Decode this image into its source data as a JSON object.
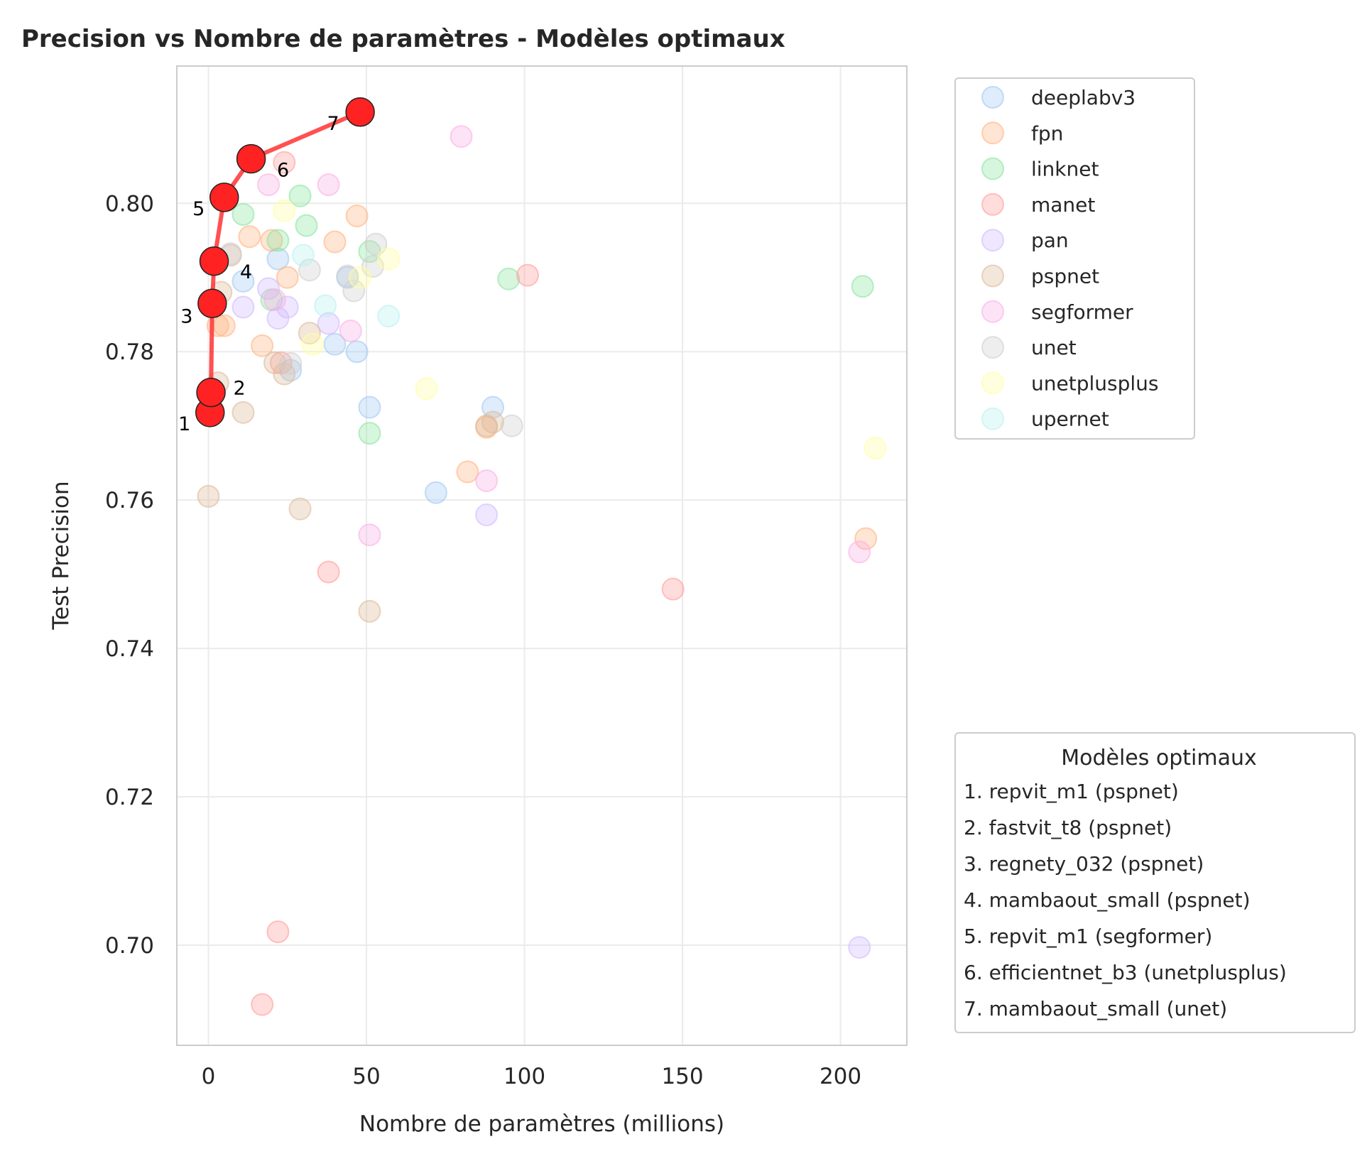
{
  "chart_data": {
    "type": "scatter",
    "title": "Precision vs Nombre de paramètres - Modèles optimaux",
    "xlabel": "Nombre de paramètres (millions)",
    "ylabel": "Test Precision",
    "xlim": [
      -10,
      221
    ],
    "ylim": [
      0.6865,
      0.8185
    ],
    "xticks": [
      0,
      50,
      100,
      150,
      200
    ],
    "yticks": [
      0.7,
      0.72,
      0.74,
      0.76,
      0.78,
      0.8
    ],
    "xtick_labels": [
      "0",
      "50",
      "100",
      "150",
      "200"
    ],
    "ytick_labels": [
      "0.70",
      "0.72",
      "0.74",
      "0.76",
      "0.78",
      "0.80"
    ],
    "grid": true,
    "legend_placement": "upper-right-outside",
    "series": [
      {
        "name": "deeplabv3",
        "color": "#a1c9f4",
        "points": [
          [
            11,
            0.7895
          ],
          [
            22,
            0.7925
          ],
          [
            26,
            0.7775
          ],
          [
            40,
            0.781
          ],
          [
            44,
            0.79
          ],
          [
            47,
            0.78
          ],
          [
            51,
            0.7725
          ],
          [
            72,
            0.761
          ],
          [
            90,
            0.7725
          ]
        ]
      },
      {
        "name": "fpn",
        "color": "#ffb482",
        "points": [
          [
            3,
            0.7835
          ],
          [
            5,
            0.7835
          ],
          [
            13,
            0.7955
          ],
          [
            17,
            0.7808
          ],
          [
            20,
            0.795
          ],
          [
            25,
            0.79
          ],
          [
            40,
            0.7948
          ],
          [
            47,
            0.7983
          ],
          [
            82,
            0.7638
          ],
          [
            88,
            0.7698
          ],
          [
            208,
            0.7548
          ]
        ]
      },
      {
        "name": "linknet",
        "color": "#8de5a1",
        "points": [
          [
            11,
            0.7985
          ],
          [
            20,
            0.787
          ],
          [
            22,
            0.795
          ],
          [
            29,
            0.801
          ],
          [
            31,
            0.797
          ],
          [
            51,
            0.769
          ],
          [
            51,
            0.7935
          ],
          [
            95,
            0.7898
          ],
          [
            207,
            0.7888
          ]
        ]
      },
      {
        "name": "manet",
        "color": "#ff9f9b",
        "points": [
          [
            17,
            0.692
          ],
          [
            22,
            0.7018
          ],
          [
            23,
            0.7785
          ],
          [
            24,
            0.8055
          ],
          [
            38,
            0.7503
          ],
          [
            101,
            0.7903
          ],
          [
            147,
            0.748
          ]
        ]
      },
      {
        "name": "pan",
        "color": "#d0bbff",
        "points": [
          [
            11,
            0.786
          ],
          [
            19,
            0.7885
          ],
          [
            22,
            0.7845
          ],
          [
            25,
            0.786
          ],
          [
            38,
            0.7838
          ],
          [
            88,
            0.758
          ],
          [
            206,
            0.6997
          ]
        ]
      },
      {
        "name": "pspnet",
        "color": "#debb9b",
        "points": [
          [
            0,
            0.7605
          ],
          [
            3,
            0.7758
          ],
          [
            4,
            0.788
          ],
          [
            7,
            0.793
          ],
          [
            11,
            0.7718
          ],
          [
            21,
            0.7785
          ],
          [
            24,
            0.777
          ],
          [
            29,
            0.7588
          ],
          [
            32,
            0.7825
          ],
          [
            51,
            0.745
          ],
          [
            88,
            0.77
          ],
          [
            90,
            0.7705
          ]
        ]
      },
      {
        "name": "segformer",
        "color": "#fab0e4",
        "points": [
          [
            19,
            0.8025
          ],
          [
            21,
            0.787
          ],
          [
            38,
            0.8025
          ],
          [
            45,
            0.7828
          ],
          [
            51,
            0.7553
          ],
          [
            80,
            0.809
          ],
          [
            88,
            0.7626
          ],
          [
            206,
            0.753
          ]
        ]
      },
      {
        "name": "unet",
        "color": "#cfcfcf",
        "points": [
          [
            7,
            0.7932
          ],
          [
            26,
            0.7784
          ],
          [
            32,
            0.791
          ],
          [
            44,
            0.7902
          ],
          [
            46,
            0.7882
          ],
          [
            52,
            0.7915
          ],
          [
            53,
            0.7945
          ],
          [
            96,
            0.77
          ]
        ]
      },
      {
        "name": "unetplusplus",
        "color": "#fffea3",
        "points": [
          [
            24,
            0.799
          ],
          [
            33,
            0.781
          ],
          [
            48,
            0.79
          ],
          [
            57,
            0.7925
          ],
          [
            69,
            0.775
          ],
          [
            211,
            0.767
          ]
        ]
      },
      {
        "name": "upernet",
        "color": "#b9f2f0",
        "points": [
          [
            30,
            0.793
          ],
          [
            37,
            0.7862
          ],
          [
            57,
            0.7848
          ]
        ]
      }
    ],
    "optimal_frontier": {
      "legend_title": "Modèles optimaux",
      "color": "#ff0000",
      "points": [
        {
          "rank": "1",
          "x": 0.5,
          "y": 0.7718,
          "label": "1. repvit_m1 (pspnet)"
        },
        {
          "rank": "2",
          "x": 0.8,
          "y": 0.7745,
          "label": "2. fastvit_t8 (pspnet)"
        },
        {
          "rank": "3",
          "x": 1.2,
          "y": 0.7865,
          "label": "3. regnety_032 (pspnet)"
        },
        {
          "rank": "4",
          "x": 1.8,
          "y": 0.7922,
          "label": "4. mambaout_small (pspnet)"
        },
        {
          "rank": "5",
          "x": 5.0,
          "y": 0.8008,
          "label": "5. repvit_m1 (segformer)"
        },
        {
          "rank": "6",
          "x": 13.5,
          "y": 0.806,
          "label": "6. efficientnet_b3 (unetplusplus)"
        },
        {
          "rank": "7",
          "x": 48.0,
          "y": 0.8123,
          "label": "7. mambaout_small (unet)"
        }
      ]
    }
  }
}
